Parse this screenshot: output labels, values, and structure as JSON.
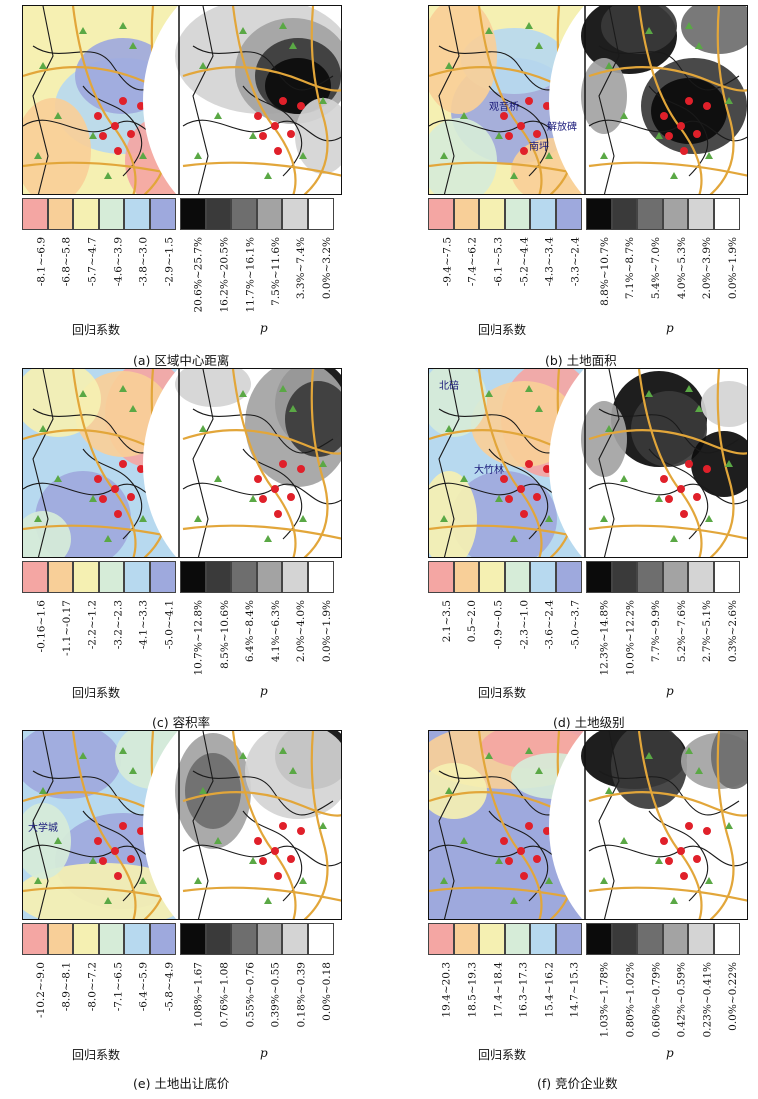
{
  "colors": {
    "coef": [
      "#f4a6a3",
      "#f8cf98",
      "#f5f0b2",
      "#d6ecd8",
      "#b7d9ef",
      "#9ea9dd"
    ],
    "p": [
      "#0b0b0b",
      "#3a3a3a",
      "#6e6e6e",
      "#a3a3a3",
      "#d4d4d4",
      "#ffffff"
    ],
    "road": "#e2a63a",
    "boundary": "#1a1a1a",
    "station": "#5aa845",
    "center": "#e0202a"
  },
  "common": {
    "coef_title": "回归系数",
    "p_title": "p"
  },
  "chart_data": [
    {
      "type": "map",
      "caption": "(a) 区域中心距离",
      "coef_legend": [
        "-8.1~-6.9",
        "-6.8~-5.8",
        "-5.7~-4.7",
        "-4.6~-3.9",
        "-3.8~-3.0",
        "-2.9~-1.5"
      ],
      "p_legend": [
        "20.6%~25.7%",
        "16.2%~20.5%",
        "11.7%~16.1%",
        "7.5%~11.6%",
        "3.3%~7.4%",
        "0.0%~3.2%"
      ],
      "map_labels": []
    },
    {
      "type": "map",
      "caption": "(b) 土地面积",
      "coef_legend": [
        "-9.4~-7.5",
        "-7.4~-6.2",
        "-6.1~-5.3",
        "-5.2~-4.4",
        "-4.3~-3.4",
        "-3.3~-2.4"
      ],
      "p_legend": [
        "8.8%~10.7%",
        "7.1%~8.7%",
        "5.4%~7.0%",
        "4.0%~5.3%",
        "2.0%~3.9%",
        "0.0%~1.9%"
      ],
      "map_labels": [
        "观音桥",
        "解放碑",
        "南坪"
      ]
    },
    {
      "type": "map",
      "caption": "(c) 容积率",
      "coef_legend": [
        "-0.16~1.6",
        "-1.1~-0.17",
        "-2.2~-1.2",
        "-3.2~-2.3",
        "-4.1~-3.3",
        "-5.0~-4.1"
      ],
      "p_legend": [
        "10.7%~12.8%",
        "8.5%~10.6%",
        "6.4%~8.4%",
        "4.1%~6.3%",
        "2.0%~4.0%",
        "0.0%~1.9%"
      ],
      "map_labels": []
    },
    {
      "type": "map",
      "caption": "(d) 土地级别",
      "coef_legend": [
        "2.1~3.5",
        "0.5~2.0",
        "-0.9~-0.5",
        "-2.3~-1.0",
        "-3.6~-2.4",
        "-5.0~-3.7"
      ],
      "p_legend": [
        "12.3%~14.8%",
        "10.0%~12.2%",
        "7.7%~9.9%",
        "5.2%~7.6%",
        "2.7%~5.1%",
        "0.3%~2.6%"
      ],
      "map_labels": [
        "北碚",
        "大竹林"
      ]
    },
    {
      "type": "map",
      "caption": "(e) 土地出让底价",
      "coef_legend": [
        "-10.2~-9.0",
        "-8.9~-8.1",
        "-8.0~-7.2",
        "-7.1~-6.5",
        "-6.4~-5.9",
        "-5.8~-4.9"
      ],
      "p_legend": [
        "1.08%~1.67",
        "0.76%~1.08",
        "0.55%~0.76",
        "0.39%~0.55",
        "0.18%~0.39",
        "0.0%~0.18"
      ],
      "map_labels": [
        "大学城"
      ]
    },
    {
      "type": "map",
      "caption": "(f) 竞价企业数",
      "coef_legend": [
        "19.4~20.3",
        "18.5~19.3",
        "17.4~18.4",
        "16.3~17.3",
        "15.4~16.2",
        "14.7~15.3"
      ],
      "p_legend": [
        "1.03%~1.78%",
        "0.80%~1.02%",
        "0.60%~0.79%",
        "0.42%~0.59%",
        "0.23%~0.41%",
        "0.0%~0.22%"
      ],
      "map_labels": []
    }
  ]
}
